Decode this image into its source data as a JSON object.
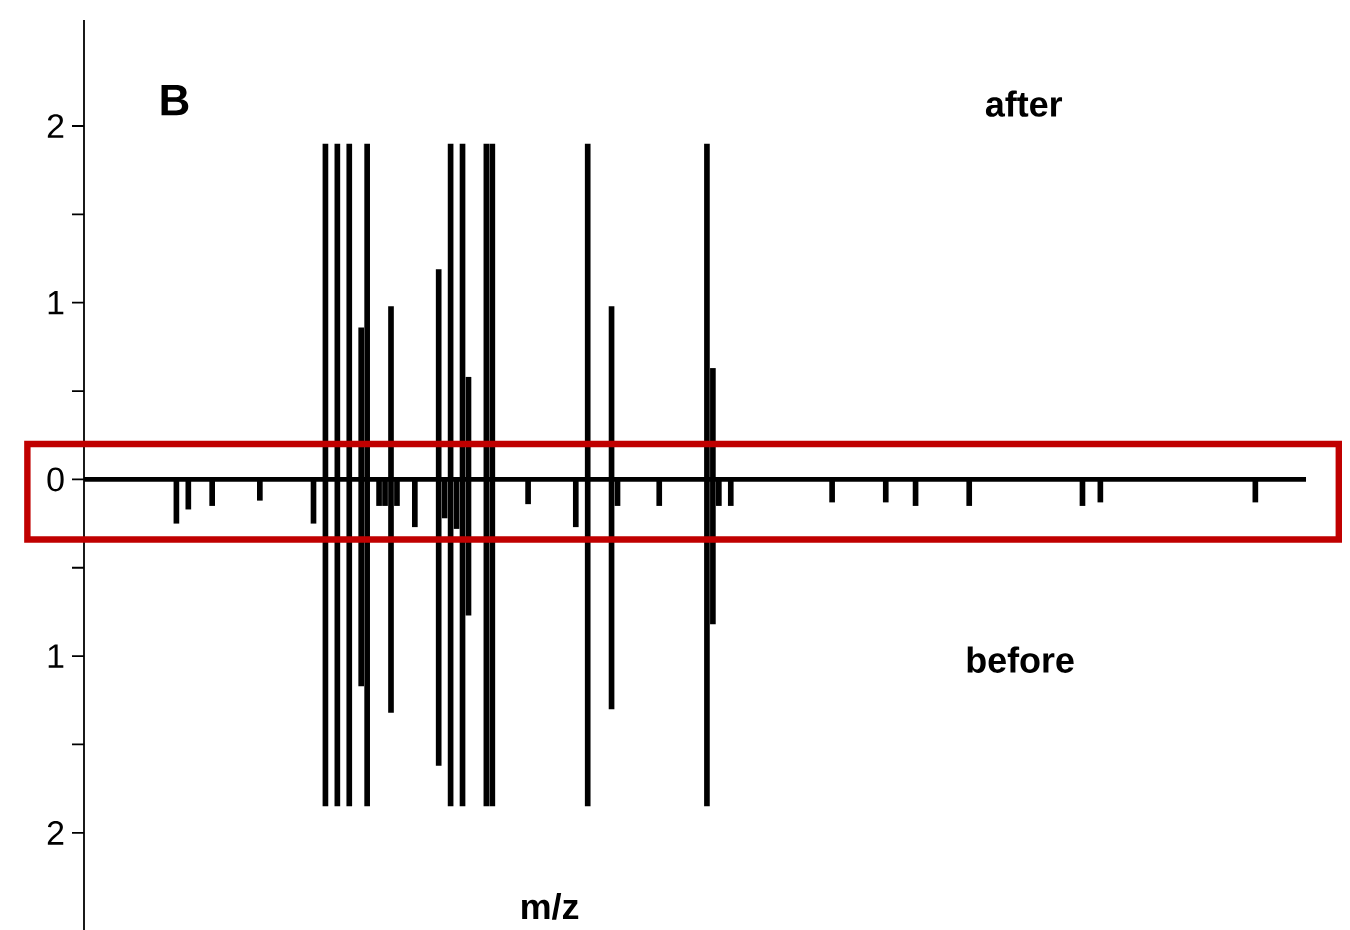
{
  "chart_data": {
    "type": "bar",
    "xlabel": "m/z",
    "annotations": [
      "B",
      "after",
      "before"
    ],
    "categories": [
      null,
      null,
      null,
      null,
      null,
      null,
      null,
      null,
      null,
      null,
      null,
      null,
      null,
      null,
      null,
      null,
      null,
      null,
      null,
      null,
      null,
      null,
      null,
      null,
      null,
      null,
      null,
      null,
      null,
      null,
      null,
      null,
      null,
      null,
      null,
      null,
      null,
      null,
      null,
      null,
      null,
      null,
      null,
      null,
      null,
      null,
      null,
      null,
      null,
      null,
      null,
      null,
      null,
      null,
      null,
      null,
      null,
      null,
      null,
      null,
      null,
      null,
      null,
      null,
      null,
      null,
      null,
      null,
      null,
      null,
      null,
      null,
      null,
      null,
      null,
      null,
      null,
      null,
      null,
      null,
      null,
      null,
      null,
      null,
      null,
      null,
      null,
      null,
      null,
      null,
      null,
      null,
      null,
      null,
      null,
      null,
      null,
      null,
      null,
      null,
      null,
      null,
      null,
      null,
      null,
      null,
      null,
      null,
      null,
      null,
      null,
      null,
      null,
      null,
      null,
      null,
      null,
      null,
      null,
      null,
      null,
      null,
      null,
      null,
      null,
      null,
      null,
      null,
      null,
      null,
      null,
      null,
      null,
      null,
      null,
      null,
      null,
      null,
      null,
      null,
      null,
      null,
      null,
      null,
      null,
      null,
      null,
      null,
      null,
      null,
      null,
      null,
      null,
      null,
      null,
      null,
      null,
      null,
      null,
      null,
      null,
      null,
      null,
      null,
      null,
      null,
      null,
      null,
      null,
      null,
      null,
      null,
      null,
      null,
      null,
      null,
      null,
      null,
      null,
      null,
      null,
      null,
      null,
      null,
      null,
      null,
      null,
      null,
      null,
      null,
      null,
      null,
      null,
      null,
      null,
      null,
      null,
      null,
      null,
      null,
      null,
      null,
      null,
      null,
      null
    ],
    "series": [
      {
        "color": "#000000",
        "values": [
          null,
          null,
          null,
          null,
          null,
          null,
          null,
          null,
          null,
          null,
          null,
          null,
          null,
          null,
          null,
          null,
          null,
          null,
          null,
          null,
          null,
          null,
          null,
          null,
          null,
          null,
          null,
          null,
          null,
          null,
          null,
          null,
          null,
          null,
          null,
          null,
          null,
          null,
          null,
          null,
          1.9,
          null,
          1.9,
          null,
          1.9,
          null,
          0.86,
          1.9,
          null,
          null,
          null,
          0.98,
          null,
          null,
          null,
          null,
          null,
          null,
          null,
          1.19,
          null,
          1.9,
          null,
          1.9,
          0.58,
          null,
          null,
          1.9,
          1.9,
          null,
          null,
          null,
          null,
          null,
          null,
          null,
          null,
          null,
          null,
          null,
          null,
          null,
          null,
          null,
          1.9,
          null,
          null,
          null,
          0.98,
          null,
          null,
          null,
          null,
          null,
          null,
          null,
          null,
          null,
          null,
          null,
          null,
          null,
          null,
          null,
          1.9,
          0.63,
          null,
          null,
          null,
          null,
          null,
          null,
          null,
          null,
          null,
          null,
          null,
          null,
          null,
          null,
          null,
          null,
          null,
          null,
          null,
          null,
          null,
          null,
          null,
          null,
          null,
          null,
          null,
          null,
          null,
          null,
          null,
          null,
          null,
          null,
          null,
          null,
          null,
          null,
          null,
          null,
          null,
          null,
          null,
          null,
          null,
          null,
          null,
          null,
          null,
          null,
          null,
          null,
          null,
          null,
          null,
          null,
          null,
          null,
          null,
          null,
          null,
          null,
          null,
          null,
          null,
          null,
          null,
          null,
          null,
          null,
          null,
          null,
          null,
          null,
          null,
          null,
          null,
          null,
          null,
          null,
          null,
          null,
          null,
          null,
          null,
          null,
          null,
          null,
          null,
          null,
          null,
          null,
          null,
          null,
          null,
          null,
          null,
          null,
          null
        ]
      },
      {
        "color": "#000000",
        "values": [
          null,
          null,
          null,
          null,
          null,
          null,
          null,
          null,
          null,
          null,
          null,
          null,
          null,
          null,
          null,
          -0.25,
          null,
          -0.17,
          null,
          null,
          null,
          -0.15,
          null,
          null,
          null,
          null,
          null,
          null,
          null,
          -0.12,
          null,
          null,
          null,
          null,
          null,
          null,
          null,
          null,
          -0.25,
          null,
          -1.85,
          null,
          -1.85,
          null,
          -1.85,
          null,
          -1.17,
          -1.85,
          null,
          -0.15,
          -0.15,
          -1.32,
          -0.15,
          null,
          null,
          -0.27,
          null,
          null,
          null,
          -1.62,
          -0.22,
          -1.85,
          -0.28,
          -1.85,
          -0.77,
          null,
          null,
          -1.85,
          -1.85,
          null,
          null,
          null,
          null,
          null,
          -0.14,
          null,
          null,
          null,
          null,
          null,
          null,
          null,
          -0.27,
          null,
          -1.85,
          null,
          null,
          null,
          -1.3,
          -0.15,
          null,
          null,
          null,
          null,
          null,
          null,
          -0.15,
          null,
          null,
          null,
          null,
          null,
          null,
          null,
          -1.85,
          -0.82,
          -0.15,
          null,
          -0.15,
          null,
          null,
          null,
          null,
          null,
          null,
          null,
          null,
          null,
          null,
          null,
          null,
          null,
          null,
          null,
          null,
          -0.13,
          null,
          null,
          null,
          null,
          null,
          null,
          null,
          null,
          -0.13,
          null,
          null,
          null,
          null,
          -0.15,
          null,
          null,
          null,
          null,
          null,
          null,
          null,
          null,
          -0.15,
          null,
          null,
          null,
          null,
          null,
          null,
          null,
          null,
          null,
          null,
          null,
          null,
          null,
          null,
          null,
          null,
          null,
          null,
          -0.15,
          null,
          null,
          -0.13,
          null,
          null,
          null,
          null,
          null,
          null,
          null,
          null,
          null,
          null,
          null,
          null,
          null,
          null,
          null,
          null,
          null,
          null,
          null,
          null,
          null,
          null,
          null,
          null,
          null,
          -0.13,
          null,
          null,
          null,
          null,
          null,
          null,
          null,
          null
        ]
      }
    ],
    "ylim": [
      -2.55,
      2.6
    ],
    "yticks": [
      2,
      {
        "value": 1.5,
        "label": null
      },
      1,
      {
        "value": 0.5,
        "label": null
      },
      0,
      {
        "value": -0.5,
        "label": null
      },
      {
        "value": -1,
        "label": "1"
      },
      {
        "value": -1.5,
        "label": null
      },
      {
        "value": -2,
        "label": "2"
      }
    ],
    "tick_labels": "y"
  }
}
